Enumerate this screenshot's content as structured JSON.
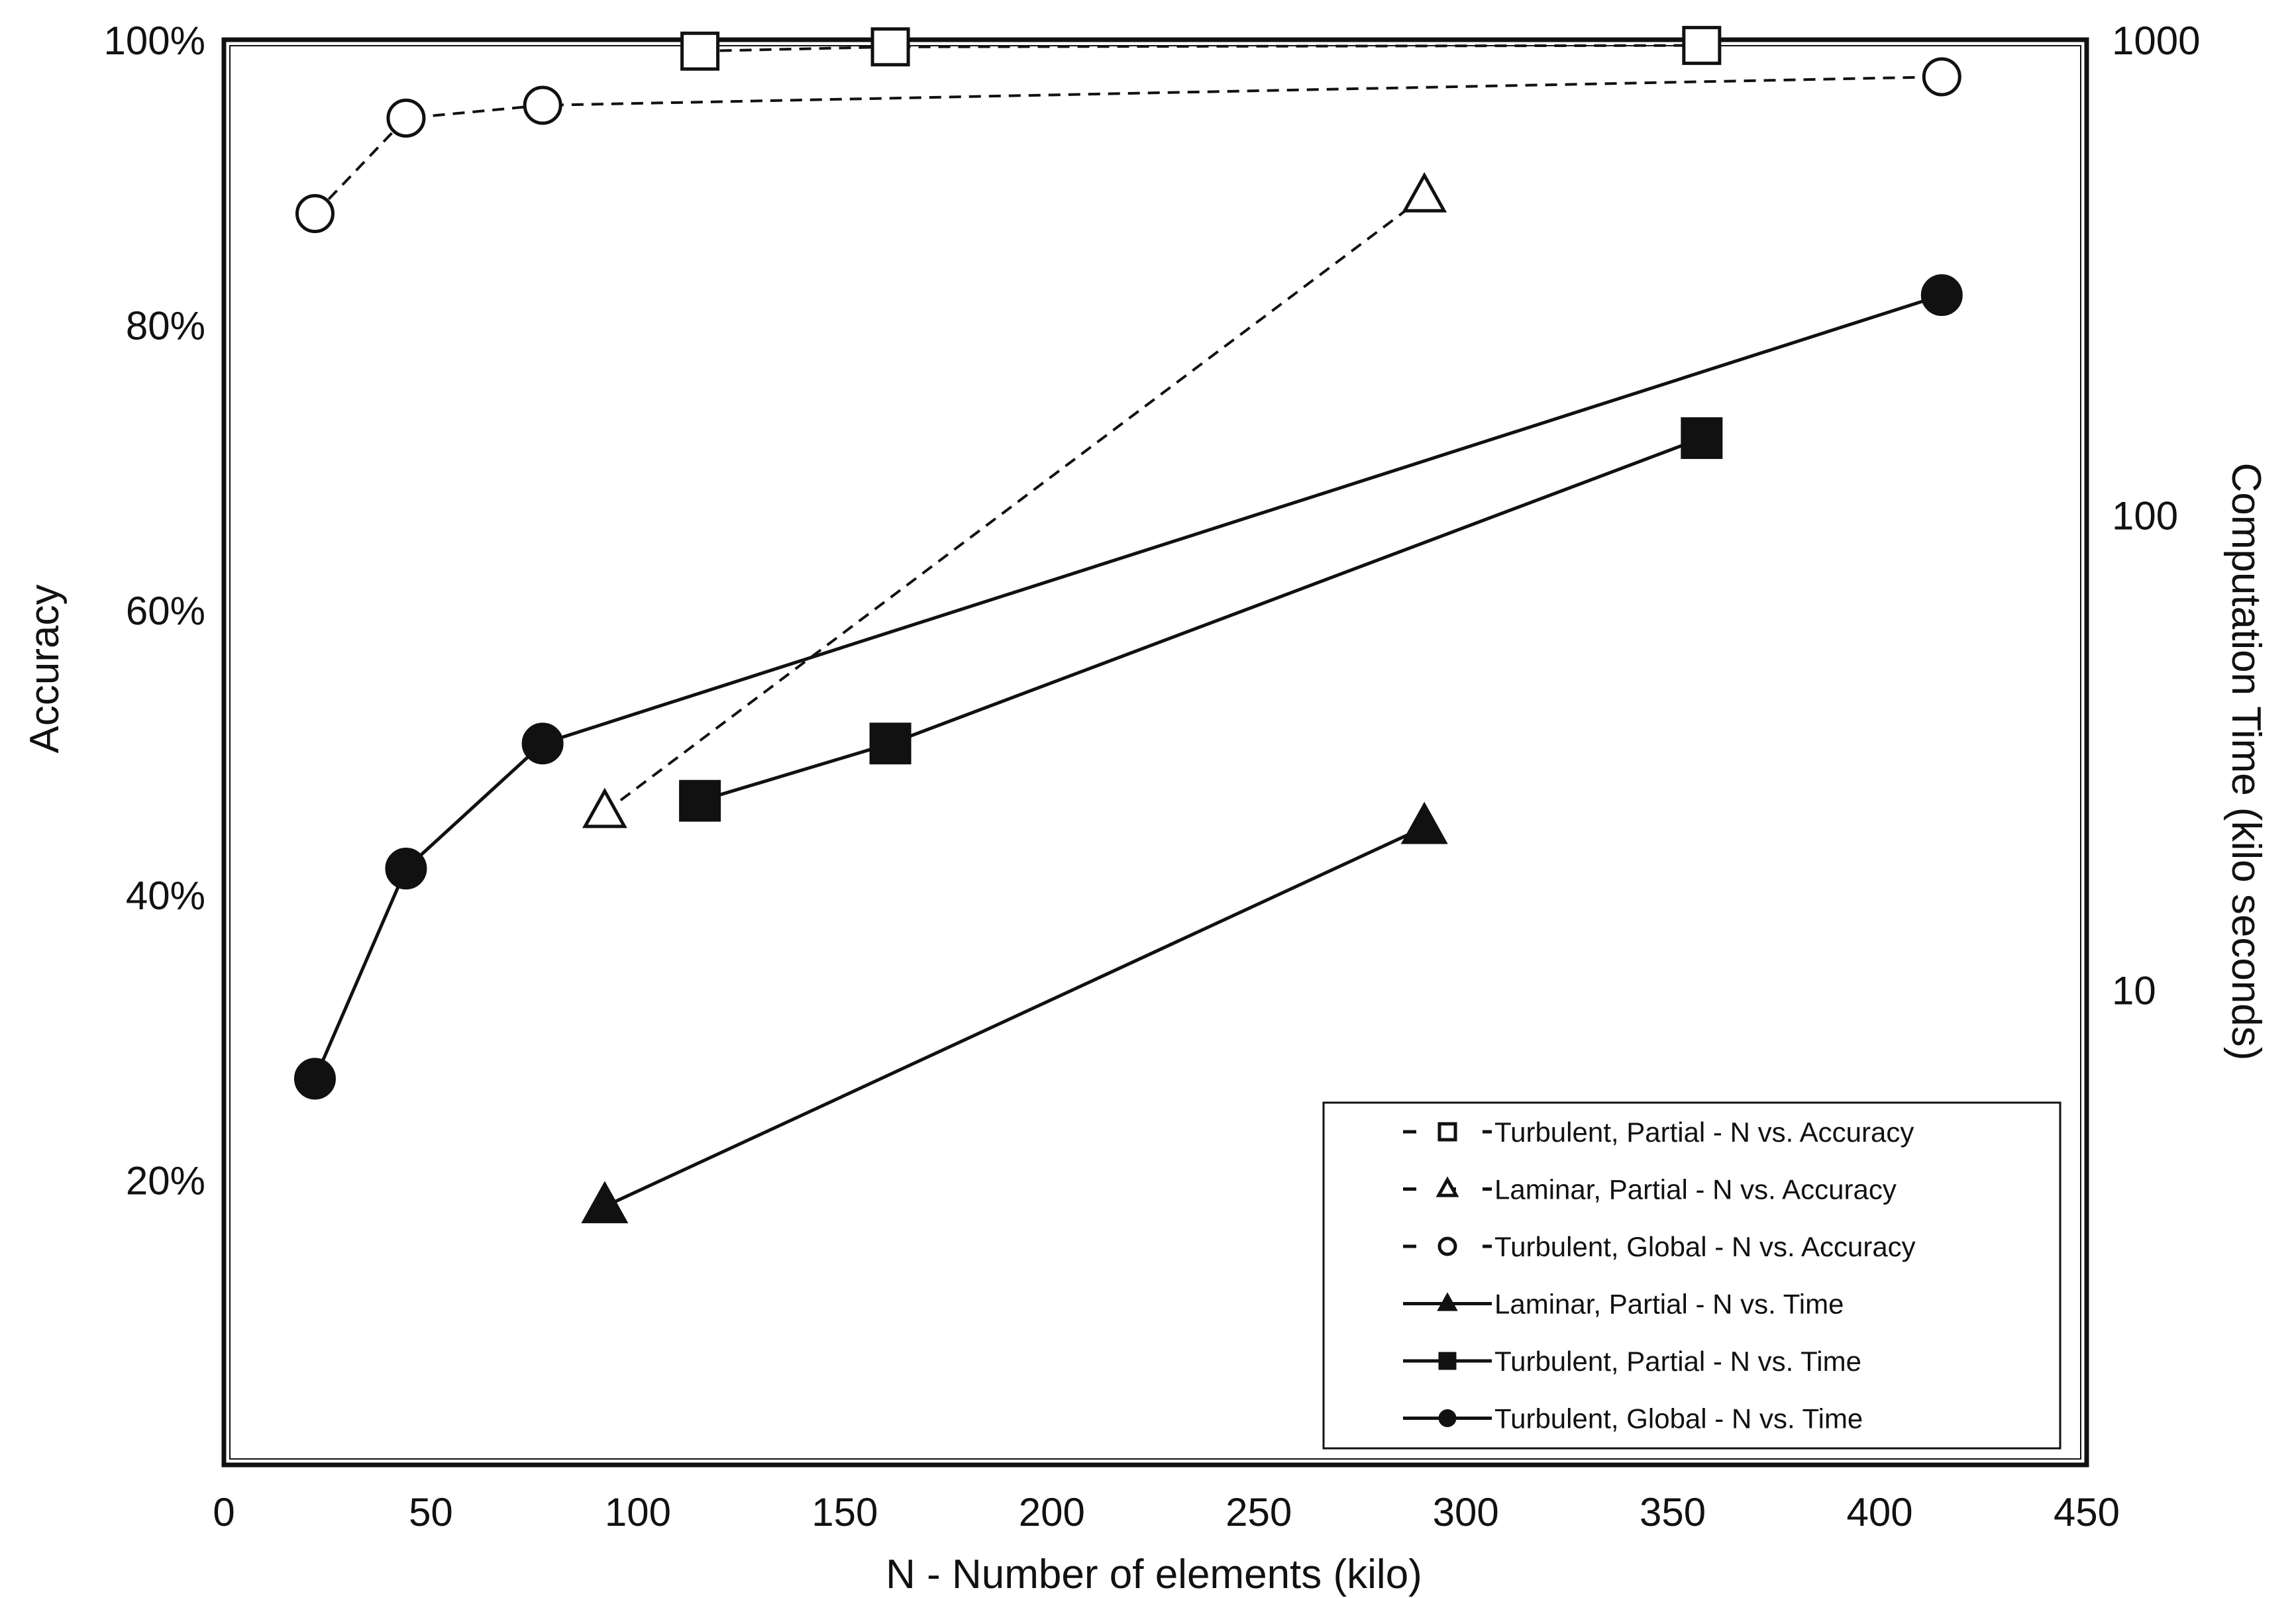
{
  "chart_data": {
    "type": "line",
    "title": "",
    "xlabel": "N - Number of elements (kilo)",
    "ylabel": "Accuracy",
    "y2label": "Computation Time (kilo seconds)",
    "xlim": [
      0,
      450
    ],
    "ylim": [
      0,
      100
    ],
    "y2lim": [
      1,
      1000
    ],
    "y2scale": "log",
    "grid": false,
    "legend_position": "bottom-right",
    "x_ticks": [
      "0",
      "50",
      "100",
      "150",
      "200",
      "250",
      "300",
      "350",
      "400",
      "450"
    ],
    "y_ticks": [
      "20%",
      "40%",
      "60%",
      "80%",
      "100%"
    ],
    "y2_ticks": [
      "10",
      "100",
      "1000"
    ],
    "series": [
      {
        "name": "Turbulent, Partial - N vs. Accuracy",
        "axis": "left",
        "marker": "square-open",
        "line": "dashed",
        "x": [
          115,
          161,
          357
        ],
        "y": [
          99.2,
          99.5,
          99.6
        ]
      },
      {
        "name": "Laminar, Partial - N vs. Accuracy",
        "axis": "left",
        "marker": "triangle-open",
        "line": "dashed",
        "x": [
          92,
          290
        ],
        "y": [
          45.8,
          89.0
        ]
      },
      {
        "name": "Turbulent, Global - N vs. Accuracy",
        "axis": "left",
        "marker": "circle-open",
        "line": "dashed",
        "x": [
          22,
          44,
          77,
          415
        ],
        "y": [
          87.8,
          94.5,
          95.4,
          97.4
        ]
      },
      {
        "name": "Laminar, Partial - N vs. Time",
        "axis": "right",
        "marker": "triangle-filled",
        "line": "solid",
        "x": [
          92,
          290
        ],
        "y": [
          3.5,
          22
        ]
      },
      {
        "name": "Turbulent, Partial - N vs. Time",
        "axis": "right",
        "marker": "square-filled",
        "line": "solid",
        "x": [
          115,
          161,
          357
        ],
        "y": [
          25,
          33,
          145
        ]
      },
      {
        "name": "Turbulent, Global - N vs. Time",
        "axis": "right",
        "marker": "circle-filled",
        "line": "solid",
        "x": [
          22,
          44,
          77,
          415
        ],
        "y": [
          6.5,
          18,
          33,
          290
        ]
      }
    ]
  }
}
